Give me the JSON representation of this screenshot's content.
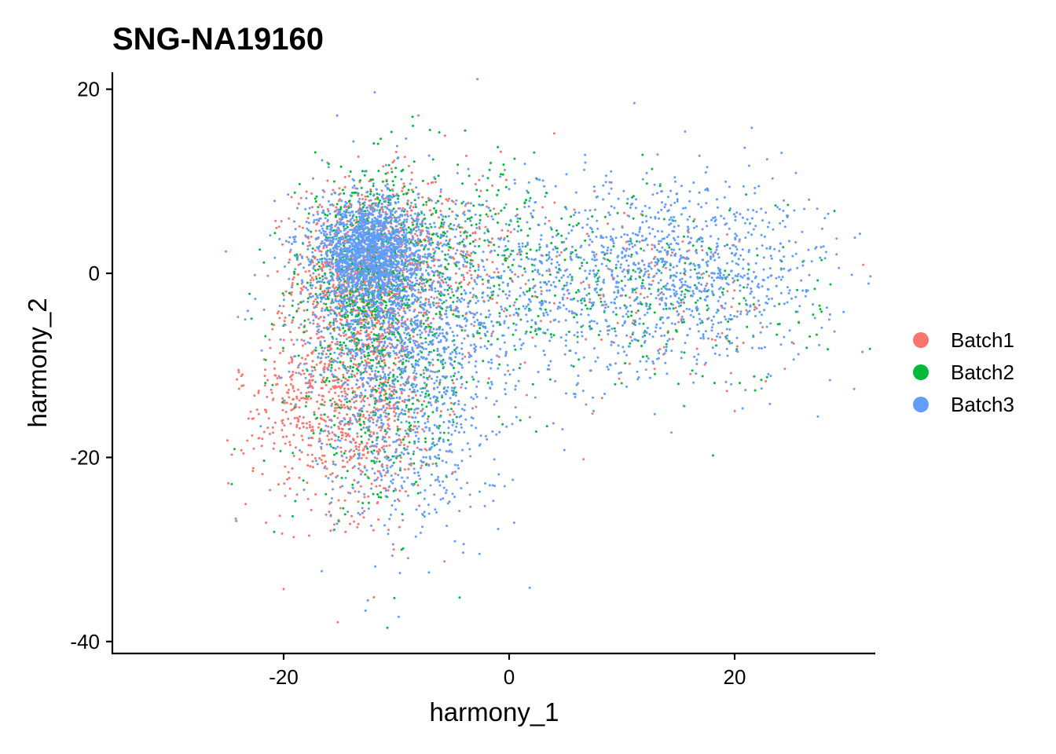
{
  "chart_data": {
    "type": "scatter",
    "title": "SNG-NA19160",
    "xlabel": "harmony_1",
    "ylabel": "harmony_2",
    "xlim": [
      -35,
      32
    ],
    "ylim": [
      -41,
      22
    ],
    "xticks": [
      {
        "value": -20,
        "label": "-20"
      },
      {
        "value": 0,
        "label": "0"
      },
      {
        "value": 20,
        "label": "20"
      }
    ],
    "yticks": [
      {
        "value": 20,
        "label": "20"
      },
      {
        "value": 0,
        "label": "0"
      },
      {
        "value": -20,
        "label": "-20"
      },
      {
        "value": -40,
        "label": "-40"
      }
    ],
    "grid": false,
    "legend_position": "right",
    "series": [
      {
        "name": "Batch1",
        "color": "#F8766D",
        "clusters": [
          {
            "cx": -13,
            "cy": 0,
            "sx": 3.0,
            "sy": 5.0,
            "n": 900
          },
          {
            "cx": -13,
            "cy": -14,
            "sx": 3.5,
            "sy": 6.0,
            "n": 650
          },
          {
            "cx": -6,
            "cy": 2,
            "sx": 3.5,
            "sy": 4.5,
            "n": 250
          },
          {
            "cx": -18,
            "cy": -14,
            "sx": 3.0,
            "sy": 5.0,
            "n": 220
          },
          {
            "cx": 12,
            "cy": -2,
            "sx": 7.0,
            "sy": 5.0,
            "n": 160
          }
        ],
        "points": [
          {
            "x": -24.6,
            "y": -19.7
          },
          {
            "x": -24.0,
            "y": -10.5
          },
          {
            "x": -20.0,
            "y": -34.3
          },
          {
            "x": -15.2,
            "y": -37.9
          },
          {
            "x": -12.0,
            "y": -35.2
          },
          {
            "x": 4.0,
            "y": 15.2
          },
          {
            "x": 14.4,
            "y": -17.3
          },
          {
            "x": 6.6,
            "y": -20.2
          },
          {
            "x": -24.9,
            "y": -22.8
          }
        ]
      },
      {
        "name": "Batch2",
        "color": "#00BA38",
        "clusters": [
          {
            "cx": -12.5,
            "cy": 0,
            "sx": 3.0,
            "sy": 5.5,
            "n": 700
          },
          {
            "cx": -11,
            "cy": -13,
            "sx": 4.0,
            "sy": 6.5,
            "n": 350
          },
          {
            "cx": -5,
            "cy": 2,
            "sx": 4.0,
            "sy": 5.0,
            "n": 200
          },
          {
            "cx": 13,
            "cy": -2,
            "sx": 7.5,
            "sy": 5.5,
            "n": 260
          },
          {
            "cx": 2,
            "cy": 0,
            "sx": 5.0,
            "sy": 6.0,
            "n": 90
          }
        ],
        "points": [
          {
            "x": -3.9,
            "y": 15.5
          },
          {
            "x": -10.8,
            "y": -38.5
          },
          {
            "x": -24.6,
            "y": -22.9
          },
          {
            "x": 28.5,
            "y": -1.2
          },
          {
            "x": -19.2,
            "y": -26.4
          },
          {
            "x": -1.0,
            "y": 13.7
          }
        ]
      },
      {
        "name": "Batch3",
        "color": "#619CFF",
        "clusters": [
          {
            "cx": -12.5,
            "cy": 2.5,
            "sx": 2.2,
            "sy": 2.8,
            "n": 1400
          },
          {
            "cx": -10,
            "cy": -3,
            "sx": 4.5,
            "sy": 6.0,
            "n": 1300
          },
          {
            "cx": -9,
            "cy": -17,
            "sx": 4.0,
            "sy": 6.0,
            "n": 550
          },
          {
            "cx": 16,
            "cy": 0,
            "sx": 6.0,
            "sy": 5.0,
            "n": 950
          },
          {
            "cx": 3,
            "cy": -2,
            "sx": 5.0,
            "sy": 6.0,
            "n": 400
          }
        ],
        "points": [
          {
            "x": 11.1,
            "y": 18.5
          },
          {
            "x": 15.6,
            "y": 15.4
          },
          {
            "x": -24.2,
            "y": -26.9
          },
          {
            "x": -9.8,
            "y": -37.3
          },
          {
            "x": 26.6,
            "y": 8.0
          },
          {
            "x": 28.0,
            "y": 6.0
          },
          {
            "x": 27.5,
            "y": -7.8
          },
          {
            "x": 4.9,
            "y": -19.2
          }
        ]
      }
    ]
  }
}
